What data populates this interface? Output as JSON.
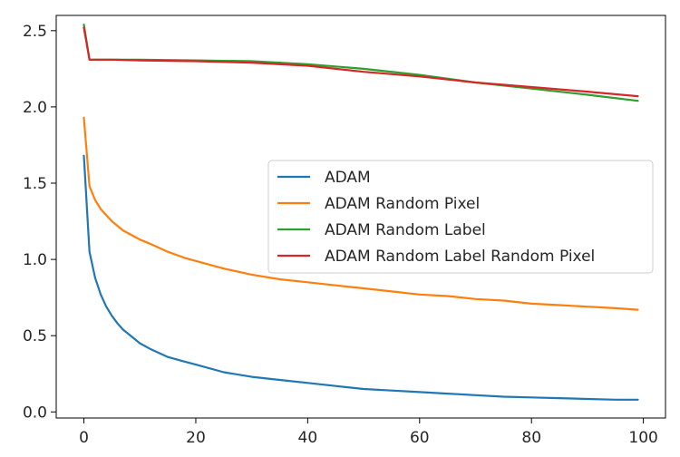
{
  "chart_data": {
    "type": "line",
    "title": "",
    "xlabel": "",
    "ylabel": "",
    "xlim": [
      -4.95,
      103.95
    ],
    "ylim": [
      -0.04,
      2.6
    ],
    "xticks": [
      0,
      20,
      40,
      60,
      80,
      100
    ],
    "yticks": [
      0.0,
      0.5,
      1.0,
      1.5,
      2.0,
      2.5
    ],
    "xtick_labels": [
      "0",
      "20",
      "40",
      "60",
      "80",
      "100"
    ],
    "ytick_labels": [
      "0.0",
      "0.5",
      "1.0",
      "1.5",
      "2.0",
      "2.5"
    ],
    "grid": false,
    "legend_position": "center-right",
    "series": [
      {
        "name": "ADAM",
        "color": "#1f77b4",
        "x": [
          0,
          1,
          2,
          3,
          4,
          5,
          6,
          7,
          8,
          9,
          10,
          12,
          15,
          18,
          20,
          25,
          30,
          35,
          40,
          45,
          50,
          55,
          60,
          65,
          70,
          75,
          80,
          85,
          90,
          95,
          99
        ],
        "values": [
          1.68,
          1.05,
          0.88,
          0.77,
          0.69,
          0.63,
          0.58,
          0.54,
          0.51,
          0.48,
          0.45,
          0.41,
          0.36,
          0.33,
          0.31,
          0.26,
          0.23,
          0.21,
          0.19,
          0.17,
          0.15,
          0.14,
          0.13,
          0.12,
          0.11,
          0.1,
          0.095,
          0.09,
          0.085,
          0.08,
          0.08
        ]
      },
      {
        "name": "ADAM Random Pixel",
        "color": "#ff7f0e",
        "x": [
          0,
          1,
          2,
          3,
          4,
          5,
          6,
          7,
          8,
          9,
          10,
          12,
          15,
          18,
          20,
          25,
          30,
          35,
          40,
          45,
          50,
          55,
          60,
          65,
          70,
          75,
          80,
          85,
          90,
          95,
          99
        ],
        "values": [
          1.93,
          1.48,
          1.39,
          1.33,
          1.29,
          1.25,
          1.22,
          1.19,
          1.17,
          1.15,
          1.13,
          1.1,
          1.05,
          1.01,
          0.99,
          0.94,
          0.9,
          0.87,
          0.85,
          0.83,
          0.81,
          0.79,
          0.77,
          0.76,
          0.74,
          0.73,
          0.71,
          0.7,
          0.69,
          0.68,
          0.67
        ]
      },
      {
        "name": "ADAM Random Label",
        "color": "#2ca02c",
        "x": [
          0,
          1,
          5,
          10,
          20,
          30,
          40,
          50,
          60,
          70,
          80,
          90,
          99
        ],
        "values": [
          2.54,
          2.31,
          2.31,
          2.31,
          2.305,
          2.3,
          2.28,
          2.25,
          2.21,
          2.16,
          2.12,
          2.08,
          2.04
        ]
      },
      {
        "name": "ADAM Random Label Random Pixel",
        "color": "#d62728",
        "x": [
          0,
          1,
          5,
          10,
          20,
          30,
          40,
          50,
          60,
          70,
          80,
          90,
          99
        ],
        "values": [
          2.52,
          2.31,
          2.31,
          2.305,
          2.3,
          2.29,
          2.27,
          2.23,
          2.2,
          2.16,
          2.13,
          2.1,
          2.07
        ]
      }
    ]
  }
}
